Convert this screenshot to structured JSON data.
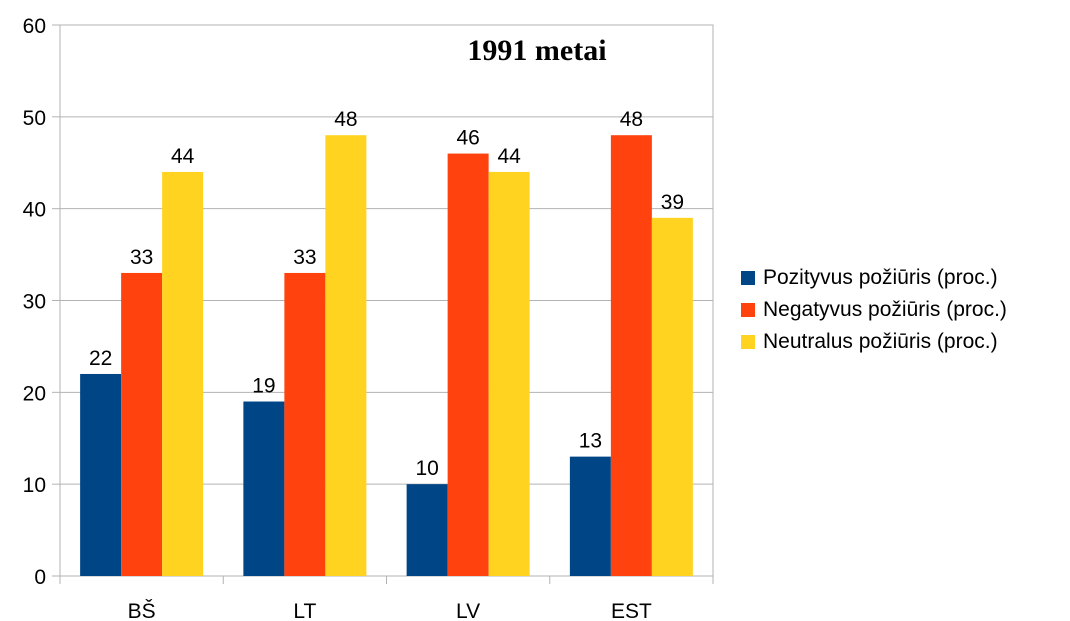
{
  "chart_data": {
    "type": "bar",
    "title": "1991 metai",
    "xlabel": "",
    "ylabel": "",
    "categories": [
      "BŠ",
      "LT",
      "LV",
      "EST"
    ],
    "series": [
      {
        "name": "Pozityvus požiūris (proc.)",
        "color": "#004586",
        "values": [
          22,
          19,
          10,
          13
        ]
      },
      {
        "name": "Negatyvus požiūris (proc.)",
        "color": "#ff420e",
        "values": [
          33,
          33,
          46,
          48
        ]
      },
      {
        "name": "Neutralus požiūris (proc.)",
        "color": "#ffd320",
        "values": [
          44,
          48,
          44,
          39
        ]
      }
    ],
    "ylim": [
      0,
      60
    ],
    "yticks": [
      0,
      10,
      20,
      30,
      40,
      50,
      60
    ],
    "grid": true,
    "legend_position": "right"
  }
}
